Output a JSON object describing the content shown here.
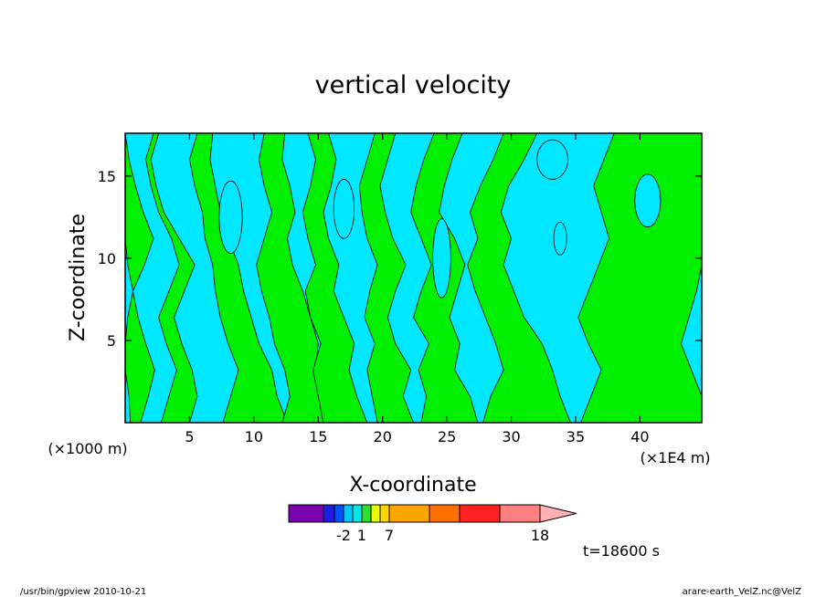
{
  "chart_data": {
    "type": "heatmap",
    "title": "vertical velocity",
    "xlabel": "X-coordinate",
    "ylabel": "Z-coordinate",
    "x_unit_label": "(×1E4 m)",
    "y_unit_label": "(×1000 m)",
    "xlim": [
      0,
      44.8
    ],
    "ylim": [
      0,
      17.6
    ],
    "x_ticks": [
      5,
      10,
      15,
      20,
      25,
      30,
      35,
      40
    ],
    "y_ticks": [
      5,
      10,
      15
    ],
    "colorbar": {
      "colors": [
        "#7b00b0",
        "#1e1ee0",
        "#0050ff",
        "#00c8ff",
        "#00e8e8",
        "#30e030",
        "#e8ff00",
        "#ffd700",
        "#ffa500",
        "#ff7000",
        "#ff2020",
        "#ff8080",
        "#ffb0b0"
      ],
      "labels": [
        {
          "text": "-2",
          "index": 3
        },
        {
          "text": "1",
          "index": 5
        },
        {
          "text": "7",
          "index": 8
        },
        {
          "text": "18",
          "index": 12
        }
      ]
    },
    "time_label": "t=18600 s"
  },
  "footer": {
    "left": "/usr/bin/gpview   2010-10-21",
    "right": "arare-earth_VelZ.nc@VelZ"
  },
  "colors": {
    "positive": "#00f000",
    "negative": "#00e8ff",
    "frame": "#000000"
  }
}
